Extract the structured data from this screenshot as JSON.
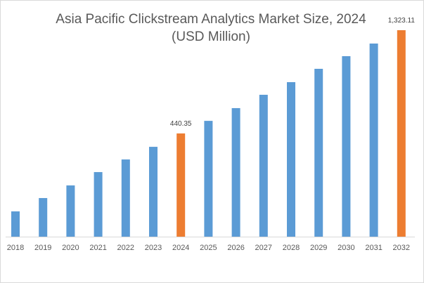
{
  "chart_data": {
    "type": "bar",
    "title": "Asia Pacific Clickstream Analytics Market Size, 2024",
    "subtitle": "(USD Million)",
    "xlabel": "",
    "ylabel": "",
    "categories": [
      "2018",
      "2019",
      "2020",
      "2021",
      "2022",
      "2023",
      "2024",
      "2025",
      "2026",
      "2027",
      "2028",
      "2029",
      "2030",
      "2031",
      "2032"
    ],
    "values": [
      -226,
      -112,
      -4,
      110,
      218,
      326,
      440.35,
      548,
      657,
      771,
      879,
      993,
      1101,
      1209,
      1323.11
    ],
    "data_labels": {
      "2024": "440.35",
      "2032": "1,323.11"
    },
    "highlight_categories": [
      "2024",
      "2032"
    ],
    "ylim": [
      -442,
      1323.11
    ],
    "y_axis_visible": false,
    "grid": false,
    "legend": "none",
    "colors": {
      "bar": "#5b9bd5",
      "highlight": "#ed7d31",
      "axis": "#d9d9d9",
      "text": "#595959"
    }
  }
}
